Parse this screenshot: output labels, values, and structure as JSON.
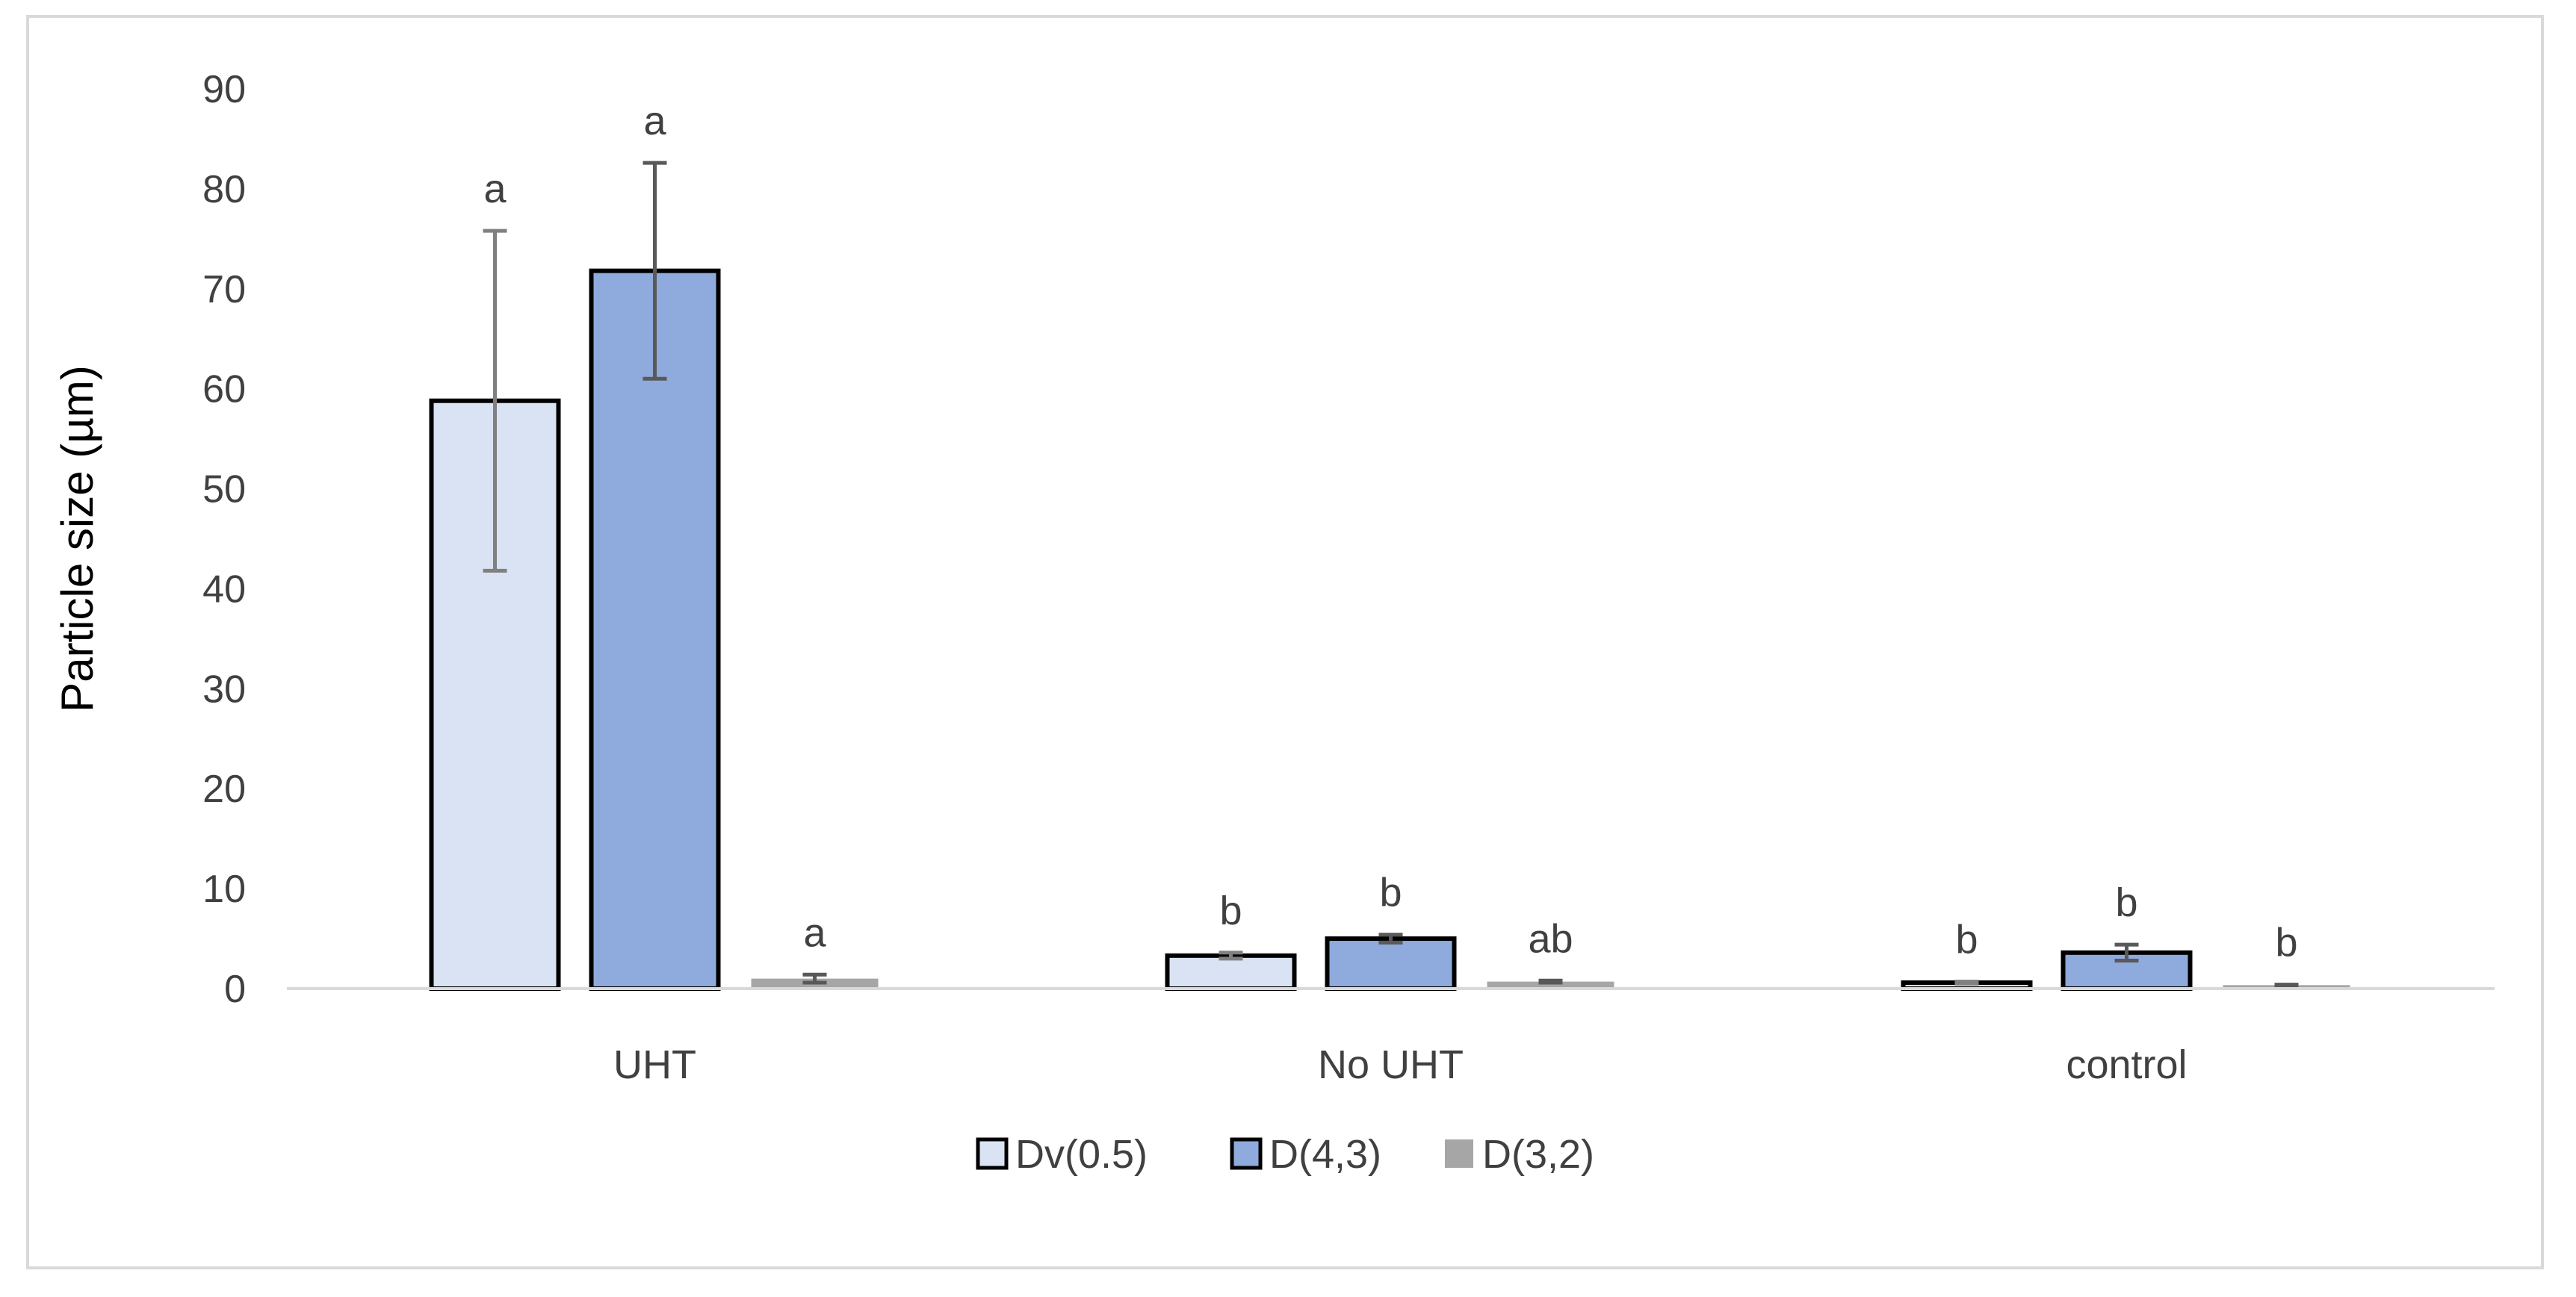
{
  "chart_data": {
    "type": "bar",
    "title": "",
    "xlabel": "",
    "ylabel": "Particle size (µm)",
    "ylim": [
      0,
      90
    ],
    "yticks": [
      0,
      10,
      20,
      30,
      40,
      50,
      60,
      70,
      80,
      90
    ],
    "grid": false,
    "legend_position": "bottom",
    "categories": [
      "UHT",
      "No UHT",
      "control"
    ],
    "series": [
      {
        "name": "Dv(0.5)",
        "color": "#dae3f3",
        "values": [
          58.8,
          3.3,
          0.6
        ],
        "errors": [
          17.0,
          0.3,
          0.1
        ],
        "letters": [
          "a",
          "b",
          "b"
        ]
      },
      {
        "name": "D(4,3)",
        "color": "#8faadc",
        "values": [
          71.8,
          5.0,
          3.6
        ],
        "errors": [
          10.8,
          0.4,
          0.8
        ],
        "letters": [
          "a",
          "b",
          "b"
        ]
      },
      {
        "name": "D(3,2)",
        "color": "#a6a6a6",
        "values": [
          1.0,
          0.7,
          0.35
        ],
        "errors": [
          0.4,
          0.1,
          0.05
        ],
        "letters": [
          "a",
          "ab",
          "b"
        ]
      }
    ]
  }
}
